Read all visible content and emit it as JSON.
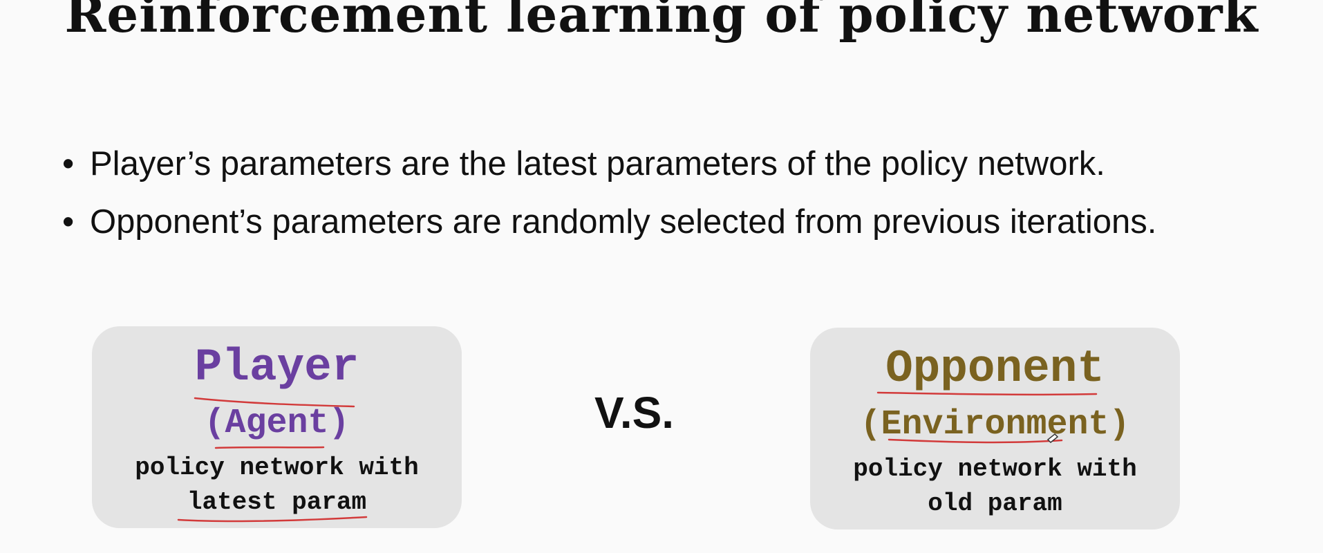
{
  "title": "Reinforcement learning of policy network",
  "bullets": [
    "Player’s parameters are the latest parameters of the policy network.",
    "Opponent’s parameters are randomly selected from previous iterations."
  ],
  "player_card": {
    "name": "Player",
    "role": "(Agent)",
    "desc_line1": "policy network with",
    "desc_line2": "latest param"
  },
  "vs_label": "V.S.",
  "opponent_card": {
    "name": "Opponent",
    "role": "(Environment)",
    "desc_line1": "policy network with",
    "desc_line2": "old param"
  },
  "colors": {
    "player": "#6a3fa0",
    "opponent": "#7a6220",
    "annotation": "#d23a3a"
  }
}
